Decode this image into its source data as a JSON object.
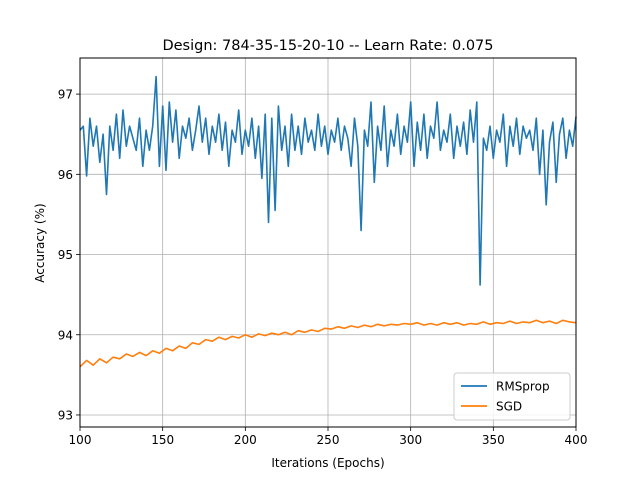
{
  "chart_data": {
    "type": "line",
    "title": "Design: 784-35-15-20-10 -- Learn Rate: 0.075",
    "xlabel": "Iterations (Epochs)",
    "ylabel": "Accuracy (%)",
    "xlim": [
      100,
      400
    ],
    "ylim": [
      92.85,
      97.45
    ],
    "xticks": [
      "100",
      "150",
      "200",
      "250",
      "300",
      "350",
      "400"
    ],
    "yticks": [
      "93",
      "94",
      "95",
      "96",
      "97"
    ],
    "grid": true,
    "legend_position": "bottom-right",
    "series": [
      {
        "name": "RMSprop",
        "color": "#1f77b4",
        "x": [
          100,
          102,
          104,
          106,
          108,
          110,
          112,
          114,
          116,
          118,
          120,
          122,
          124,
          126,
          128,
          130,
          132,
          134,
          136,
          138,
          140,
          142,
          144,
          146,
          148,
          150,
          152,
          154,
          156,
          158,
          160,
          162,
          164,
          166,
          168,
          170,
          172,
          174,
          176,
          178,
          180,
          182,
          184,
          186,
          188,
          190,
          192,
          194,
          196,
          198,
          200,
          202,
          204,
          206,
          208,
          210,
          212,
          214,
          216,
          218,
          220,
          222,
          224,
          226,
          228,
          230,
          232,
          234,
          236,
          238,
          240,
          242,
          244,
          246,
          248,
          250,
          252,
          254,
          256,
          258,
          260,
          262,
          264,
          266,
          268,
          270,
          272,
          274,
          276,
          278,
          280,
          282,
          284,
          286,
          288,
          290,
          292,
          294,
          296,
          298,
          300,
          302,
          304,
          306,
          308,
          310,
          312,
          314,
          316,
          318,
          320,
          322,
          324,
          326,
          328,
          330,
          332,
          334,
          336,
          338,
          340,
          342,
          344,
          346,
          348,
          350,
          352,
          354,
          356,
          358,
          360,
          362,
          364,
          366,
          368,
          370,
          372,
          374,
          376,
          378,
          380,
          382,
          384,
          386,
          388,
          390,
          392,
          394,
          396,
          398,
          400
        ],
        "y": [
          96.55,
          96.6,
          95.98,
          96.7,
          96.35,
          96.6,
          96.15,
          96.5,
          95.75,
          96.6,
          96.3,
          96.75,
          96.2,
          96.8,
          96.35,
          96.6,
          96.45,
          96.3,
          96.7,
          96.1,
          96.55,
          96.3,
          96.6,
          97.22,
          96.1,
          96.85,
          96.05,
          96.9,
          96.4,
          96.8,
          96.2,
          96.6,
          96.45,
          96.7,
          96.3,
          96.55,
          96.85,
          96.4,
          96.7,
          96.25,
          96.6,
          96.4,
          96.75,
          96.3,
          96.65,
          96.1,
          96.55,
          96.4,
          96.8,
          96.25,
          96.55,
          96.35,
          96.7,
          96.2,
          96.6,
          95.95,
          96.75,
          95.4,
          96.7,
          95.55,
          96.85,
          96.3,
          96.6,
          96.1,
          96.75,
          96.3,
          96.6,
          96.25,
          96.7,
          96.4,
          96.55,
          96.3,
          96.75,
          96.35,
          96.6,
          96.25,
          96.55,
          96.4,
          96.7,
          96.3,
          96.6,
          96.45,
          96.1,
          96.7,
          96.35,
          95.3,
          96.55,
          96.35,
          96.9,
          95.9,
          96.6,
          96.3,
          96.85,
          96.1,
          96.55,
          96.35,
          96.75,
          96.25,
          96.6,
          96.4,
          96.9,
          96.1,
          96.65,
          96.3,
          96.75,
          96.2,
          96.6,
          96.45,
          96.9,
          96.3,
          96.55,
          96.4,
          96.75,
          96.2,
          96.6,
          96.35,
          96.65,
          96.25,
          96.8,
          96.4,
          96.9,
          94.62,
          96.45,
          96.3,
          96.6,
          96.2,
          96.55,
          96.4,
          96.75,
          96.1,
          96.6,
          96.35,
          96.7,
          96.25,
          96.6,
          96.45,
          96.55,
          96.3,
          96.7,
          96.0,
          96.55,
          95.62,
          96.4,
          96.65,
          95.9,
          96.5,
          96.7,
          96.2,
          96.55,
          96.35,
          96.72
        ],
        "y_adjust": [
          0,
          0,
          0,
          0,
          0,
          0,
          0,
          0,
          0,
          0,
          0,
          0,
          0,
          0,
          0,
          0,
          0,
          0,
          0,
          0,
          0,
          0,
          0,
          0,
          0,
          0,
          0,
          0,
          0,
          0,
          0,
          0,
          0,
          0,
          0,
          0,
          0,
          0,
          0,
          0,
          0,
          0,
          0,
          0,
          0,
          0,
          0,
          0,
          0,
          0,
          0,
          0,
          0,
          0,
          0,
          0,
          0,
          0,
          0,
          0,
          0,
          0,
          0,
          0,
          0,
          0,
          0,
          0,
          0,
          0,
          0,
          0,
          0,
          0,
          0,
          0,
          0,
          0,
          0,
          0,
          0,
          0,
          0,
          0,
          0,
          0,
          0,
          0,
          0,
          0,
          0,
          0,
          0,
          0,
          0,
          0,
          0,
          0,
          0,
          0,
          0,
          0,
          0,
          0,
          0,
          0,
          0,
          0,
          0,
          0,
          0,
          0,
          0,
          0,
          0,
          0,
          0,
          0,
          0,
          0,
          0,
          0,
          0,
          0,
          0,
          0,
          0,
          0,
          0,
          0,
          0,
          0,
          0,
          0,
          0,
          0,
          0,
          0,
          0,
          0,
          0,
          0,
          0,
          0,
          0,
          0,
          0,
          0,
          0,
          0,
          0
        ]
      },
      {
        "name": "SGD",
        "color": "#ff7f0e",
        "x": [
          100,
          104,
          108,
          112,
          116,
          120,
          124,
          128,
          132,
          136,
          140,
          144,
          148,
          152,
          156,
          160,
          164,
          168,
          172,
          176,
          180,
          184,
          188,
          192,
          196,
          200,
          204,
          208,
          212,
          216,
          220,
          224,
          228,
          232,
          236,
          240,
          244,
          248,
          252,
          256,
          260,
          264,
          268,
          272,
          276,
          280,
          284,
          288,
          292,
          296,
          300,
          304,
          308,
          312,
          316,
          320,
          324,
          328,
          332,
          336,
          340,
          344,
          348,
          352,
          356,
          360,
          364,
          368,
          372,
          376,
          380,
          384,
          388,
          392,
          396,
          400
        ],
        "y": [
          93.6,
          93.68,
          93.62,
          93.7,
          93.65,
          93.72,
          93.7,
          93.76,
          93.73,
          93.78,
          93.74,
          93.8,
          93.77,
          93.83,
          93.8,
          93.86,
          93.83,
          93.9,
          93.88,
          93.94,
          93.92,
          93.97,
          93.94,
          93.98,
          93.96,
          94.0,
          93.97,
          94.01,
          93.99,
          94.02,
          94.0,
          94.03,
          94.0,
          94.05,
          94.03,
          94.06,
          94.04,
          94.08,
          94.07,
          94.1,
          94.08,
          94.11,
          94.09,
          94.12,
          94.1,
          94.13,
          94.11,
          94.13,
          94.12,
          94.14,
          94.13,
          94.15,
          94.12,
          94.14,
          94.12,
          94.15,
          94.13,
          94.15,
          94.12,
          94.14,
          94.13,
          94.16,
          94.13,
          94.15,
          94.14,
          94.17,
          94.14,
          94.16,
          94.15,
          94.18,
          94.15,
          94.17,
          94.14,
          94.18,
          94.16,
          94.15
        ]
      }
    ]
  }
}
